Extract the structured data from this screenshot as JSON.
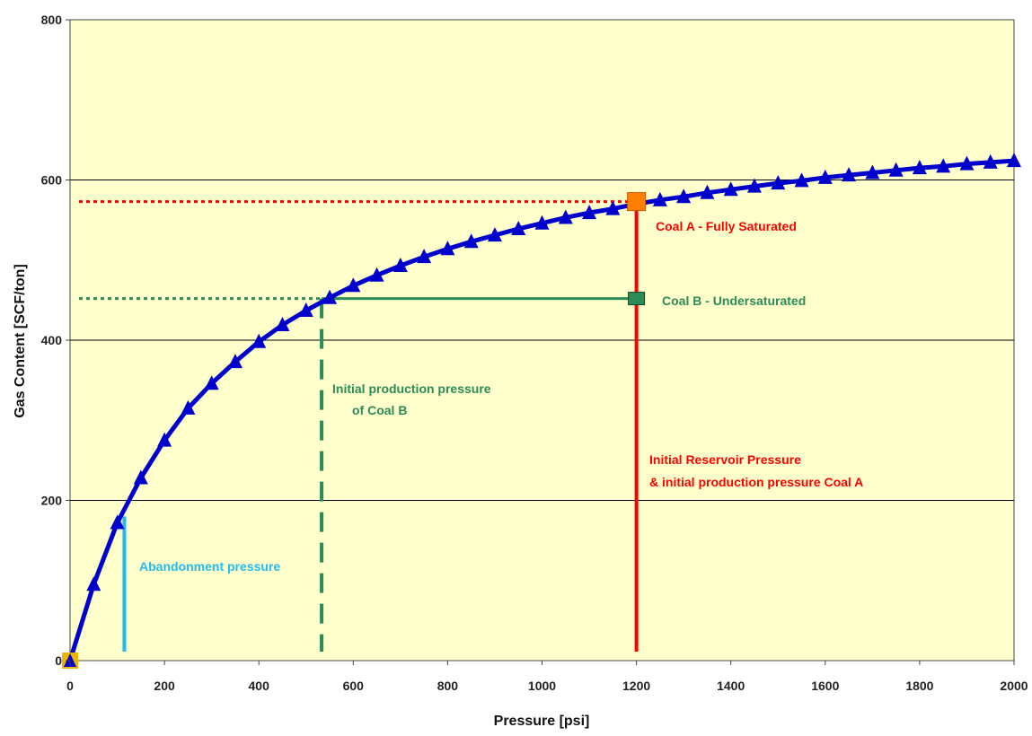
{
  "chart_data": {
    "type": "line",
    "xlabel": "Pressure [psi]",
    "ylabel": "Gas Content [SCF/ton]",
    "xlim": [
      0,
      2000
    ],
    "ylim": [
      0,
      800
    ],
    "x_ticks": [
      "0",
      "200",
      "400",
      "600",
      "800",
      "1000",
      "1200",
      "1400",
      "1600",
      "1800",
      "2000"
    ],
    "y_ticks": [
      "0",
      "200",
      "400",
      "600",
      "800"
    ],
    "grid": "horizontal",
    "series": [
      {
        "x": [
          0,
          50,
          100,
          150,
          200,
          250,
          300,
          350,
          400,
          450,
          500,
          550,
          600,
          650,
          700,
          750,
          800,
          850,
          900,
          950,
          1000,
          1050,
          1100,
          1150,
          1200,
          1250,
          1300,
          1350,
          1400,
          1450,
          1500,
          1550,
          1600,
          1650,
          1700,
          1750,
          1800,
          1850,
          1900,
          1950,
          2000
        ],
        "y": [
          0,
          95,
          172,
          228,
          275,
          315,
          346,
          373,
          398,
          419,
          437,
          453,
          468,
          481,
          493,
          504,
          514,
          523,
          531,
          539,
          546,
          553,
          559,
          564,
          570,
          575,
          579,
          584,
          588,
          592,
          596,
          599,
          603,
          606,
          609,
          612,
          615,
          617,
          620,
          622,
          624
        ]
      }
    ],
    "points": [
      {
        "label": "Coal A - Fully Saturated",
        "x": 1200,
        "y": 573
      },
      {
        "label": "Coal B - Undersaturated",
        "x": 1200,
        "y": 452
      }
    ],
    "annotations": {
      "coal_a": "Coal A - Fully Saturated",
      "coal_b": "Coal B - Undersaturated",
      "initial_prod_line1": "Initial production pressure",
      "initial_prod_line2": "of Coal B",
      "reservoir_line1": "Initial Reservoir Pressure",
      "reservoir_line2": "& initial production pressure Coal A",
      "abandonment": "Abandonment pressure"
    },
    "reference_lines": {
      "abandonment_x": 115,
      "coal_b_initial_x": 533,
      "coal_a_initial_x": 1200,
      "coal_a_gas": 573,
      "coal_b_gas": 452
    },
    "colors": {
      "plot_bg": "#ffffcc",
      "curve": "#0000cc",
      "coal_a": "#ff0000",
      "coal_b": "#2e8b57",
      "abandonment": "#22bbee",
      "coal_a_marker": "#ff8000",
      "origin_marker": "#f0b400"
    }
  }
}
